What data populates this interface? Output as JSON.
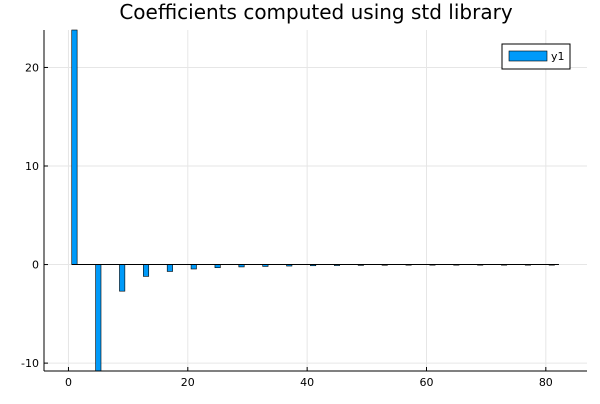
{
  "chart_data": {
    "type": "bar",
    "title": "Coefficients computed using std library",
    "xlabel": "",
    "ylabel": "",
    "xlim": [
      -4.1,
      86.9
    ],
    "ylim": [
      -10.8,
      23.8
    ],
    "x_ticks": [
      0,
      20,
      40,
      60,
      80
    ],
    "y_ticks": [
      -10,
      0,
      10,
      20
    ],
    "grid": true,
    "legend_position": "top-right",
    "colors": {
      "series": "#009AF9",
      "edge": "#000000",
      "grid": "#E6E6E6"
    },
    "series": [
      {
        "name": "y1",
        "x": [
          1,
          5,
          9,
          13,
          17,
          21,
          25,
          29,
          33,
          37,
          41,
          45,
          49,
          53,
          57,
          61,
          65,
          69,
          73,
          77,
          81
        ],
        "values": [
          23.8,
          -10.8,
          -2.7,
          -1.2,
          -0.7,
          -0.45,
          -0.32,
          -0.24,
          -0.19,
          -0.15,
          -0.12,
          -0.1,
          -0.085,
          -0.072,
          -0.062,
          -0.054,
          -0.047,
          -0.042,
          -0.037,
          -0.033,
          -0.03
        ]
      }
    ]
  }
}
